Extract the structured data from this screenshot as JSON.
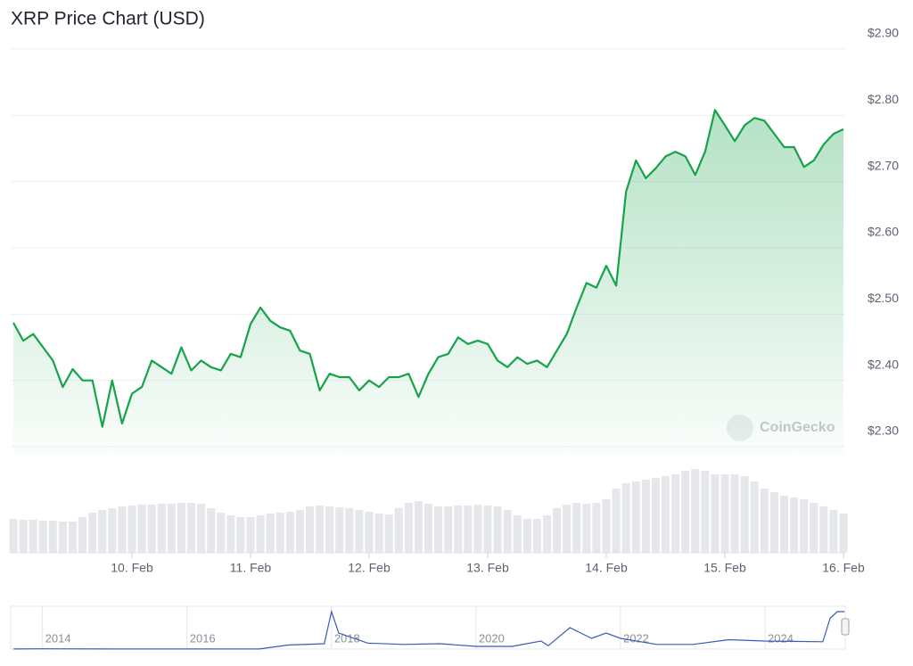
{
  "chart_data": [
    {
      "type": "line",
      "title": "XRP Price Chart (USD)",
      "color": "#16a34a",
      "grid": true,
      "ylim": [
        2.3,
        2.9
      ],
      "yticks": [
        {
          "value": 2.3,
          "label": "$2.30"
        },
        {
          "value": 2.4,
          "label": "$2.40"
        },
        {
          "value": 2.5,
          "label": "$2.50"
        },
        {
          "value": 2.6,
          "label": "$2.60"
        },
        {
          "value": 2.7,
          "label": "$2.70"
        },
        {
          "value": 2.8,
          "label": "$2.80"
        },
        {
          "value": 2.9,
          "label": "$2.90"
        }
      ],
      "watermark": "CoinGecko",
      "categories": [
        null,
        null,
        null,
        null,
        null,
        null,
        null,
        null,
        null,
        null,
        null,
        null,
        "10. Feb",
        null,
        null,
        null,
        null,
        null,
        null,
        null,
        null,
        null,
        null,
        null,
        "11. Feb",
        null,
        null,
        null,
        null,
        null,
        null,
        null,
        null,
        null,
        null,
        null,
        "12. Feb",
        null,
        null,
        null,
        null,
        null,
        null,
        null,
        null,
        null,
        null,
        null,
        "13. Feb",
        null,
        null,
        null,
        null,
        null,
        null,
        null,
        null,
        null,
        null,
        null,
        "14. Feb",
        null,
        null,
        null,
        null,
        null,
        null,
        null,
        null,
        null,
        null,
        null,
        "15. Feb",
        null,
        null,
        null,
        null,
        null,
        null,
        null,
        null,
        null,
        null,
        null,
        "16. Feb"
      ],
      "series": [
        {
          "name": "Price",
          "color": "#16a34a",
          "values": [
            2.487,
            2.46,
            2.47,
            2.45,
            2.43,
            2.39,
            2.417,
            2.4,
            2.4,
            2.33,
            2.4,
            2.335,
            2.38,
            2.39,
            2.43,
            2.42,
            2.41,
            2.45,
            2.415,
            2.43,
            2.42,
            2.415,
            2.44,
            2.435,
            2.485,
            2.51,
            2.49,
            2.48,
            2.475,
            2.445,
            2.44,
            2.385,
            2.41,
            2.405,
            2.405,
            2.385,
            2.4,
            2.39,
            2.405,
            2.405,
            2.41,
            2.375,
            2.41,
            2.435,
            2.44,
            2.465,
            2.455,
            2.46,
            2.455,
            2.43,
            2.42,
            2.435,
            2.425,
            2.43,
            2.42,
            2.445,
            2.47,
            2.51,
            2.547,
            2.54,
            2.573,
            2.543,
            2.685,
            2.732,
            2.705,
            2.72,
            2.738,
            2.745,
            2.738,
            2.71,
            2.745,
            2.808,
            2.785,
            2.761,
            2.785,
            2.796,
            2.792,
            2.772,
            2.752,
            2.752,
            2.722,
            2.732,
            2.756,
            2.772,
            2.779
          ]
        },
        {
          "name": "Volume",
          "color": "#e5e7eb",
          "values": [
            38,
            37,
            37,
            36,
            36,
            35,
            35,
            40,
            45,
            48,
            50,
            52,
            53,
            54,
            54,
            55,
            55,
            56,
            56,
            55,
            50,
            45,
            42,
            40,
            40,
            42,
            44,
            45,
            46,
            48,
            52,
            53,
            52,
            51,
            50,
            48,
            46,
            44,
            43,
            50,
            56,
            58,
            55,
            52,
            52,
            53,
            53,
            54,
            53,
            52,
            48,
            42,
            38,
            38,
            42,
            50,
            54,
            56,
            55,
            56,
            60,
            72,
            78,
            80,
            82,
            84,
            86,
            88,
            92,
            94,
            92,
            88,
            88,
            88,
            86,
            80,
            72,
            68,
            64,
            62,
            60,
            56,
            52,
            48,
            44
          ]
        }
      ]
    },
    {
      "type": "navigator",
      "color": "#3b5bb5",
      "xlim": [
        2013.56,
        2025.11
      ],
      "ylim": [
        0,
        3
      ],
      "xticks": [
        2014,
        2016,
        2018,
        2020,
        2022,
        2024
      ],
      "x": [
        2013.6,
        2014,
        2015,
        2016,
        2017,
        2017.4,
        2017.9,
        2018.0,
        2018.1,
        2018.5,
        2019,
        2019.5,
        2020,
        2020.5,
        2020.9,
        2021.0,
        2021.3,
        2021.6,
        2021.8,
        2022.0,
        2022.5,
        2023,
        2023.5,
        2024,
        2024.8,
        2024.9,
        2025.0,
        2025.1
      ],
      "values": [
        0.005,
        0.02,
        0.01,
        0.006,
        0.01,
        0.3,
        0.4,
        2.8,
        1.2,
        0.45,
        0.35,
        0.4,
        0.2,
        0.2,
        0.6,
        0.25,
        1.6,
        0.8,
        1.2,
        0.8,
        0.35,
        0.35,
        0.7,
        0.6,
        0.55,
        2.3,
        2.8,
        2.8
      ]
    }
  ]
}
